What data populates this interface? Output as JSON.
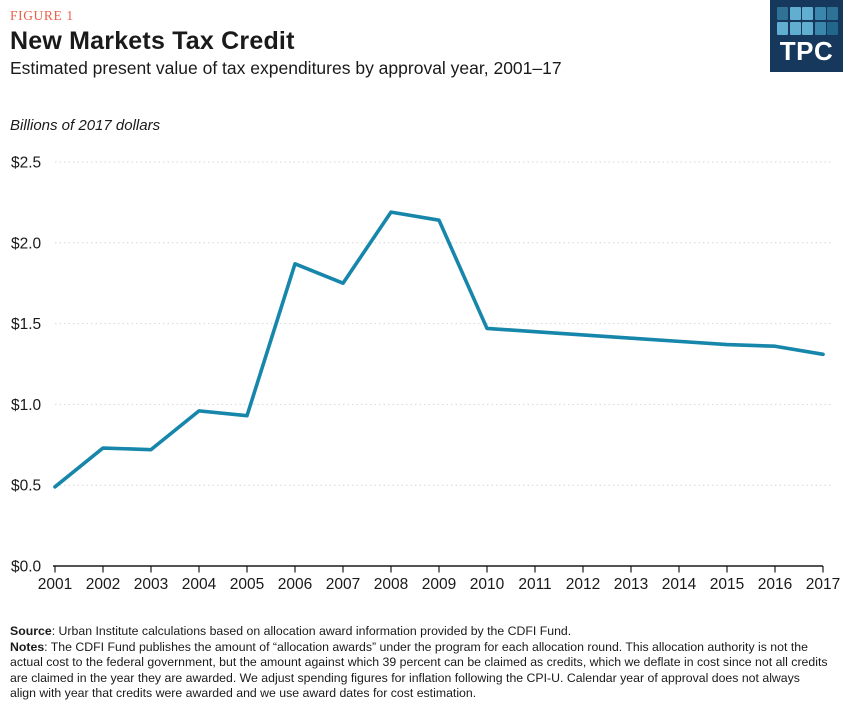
{
  "header": {
    "figure_label": "FIGURE 1",
    "title": "New Markets Tax Credit",
    "subtitle": "Estimated present value of tax expenditures by approval year, 2001–17"
  },
  "logo": {
    "text": "TPC",
    "background_color": "#16385c",
    "square_colors": [
      "#2e7396",
      "#62aed1",
      "#62aed1",
      "#3a86ad",
      "#2e7396",
      "#62aed1",
      "#62aed1",
      "#62aed1",
      "#3a86ad",
      "#21678c"
    ]
  },
  "chart_data": {
    "type": "line",
    "title": "New Markets Tax Credit",
    "subtitle": "Estimated present value of tax expenditures by approval year, 2001–17",
    "units_label": "Billions of 2017 dollars",
    "x": [
      2001,
      2002,
      2003,
      2004,
      2005,
      2006,
      2007,
      2008,
      2009,
      2010,
      2011,
      2012,
      2013,
      2014,
      2015,
      2016,
      2017
    ],
    "series": [
      {
        "name": "Estimated present value of tax expenditures",
        "values": [
          0.49,
          0.73,
          0.72,
          0.96,
          0.93,
          1.87,
          1.75,
          2.19,
          2.14,
          1.47,
          1.45,
          1.43,
          1.41,
          1.39,
          1.37,
          1.36,
          1.31
        ]
      }
    ],
    "xlabel": "",
    "ylabel": "",
    "ylim": [
      0,
      2.5
    ],
    "ytick_step": 0.5,
    "ytick_labels": [
      "$0.0",
      "$0.5",
      "$1.0",
      "$1.5",
      "$2.0",
      "$2.5"
    ],
    "xtick_labels": [
      "2001",
      "2002",
      "2003",
      "2004",
      "2005",
      "2006",
      "2007",
      "2008",
      "2009",
      "2010",
      "2011",
      "2012",
      "2013",
      "2014",
      "2015",
      "2016",
      "2017"
    ],
    "grid": "horizontal-dotted",
    "legend": "none",
    "line_color": "#1786ab",
    "gridline_color": "#d6d6d6",
    "axis_color": "#1a1a1a"
  },
  "footer": {
    "source_label": "Source",
    "source_rest": ": Urban Institute calculations based on allocation award information provided by the CDFI Fund.",
    "notes_label": "Notes",
    "notes_rest": ": The CDFI Fund publishes the amount of “allocation awards” under the program for each allocation round. This allocation authority is not the actual cost to the federal government, but the amount against which 39 percent can be claimed as credits, which we deflate in cost since not all credits are claimed in the year they are awarded. We adjust spending figures for inflation following the CPI-U. Calendar year of approval does not always align with year that credits were awarded and we use award dates for cost estimation."
  }
}
